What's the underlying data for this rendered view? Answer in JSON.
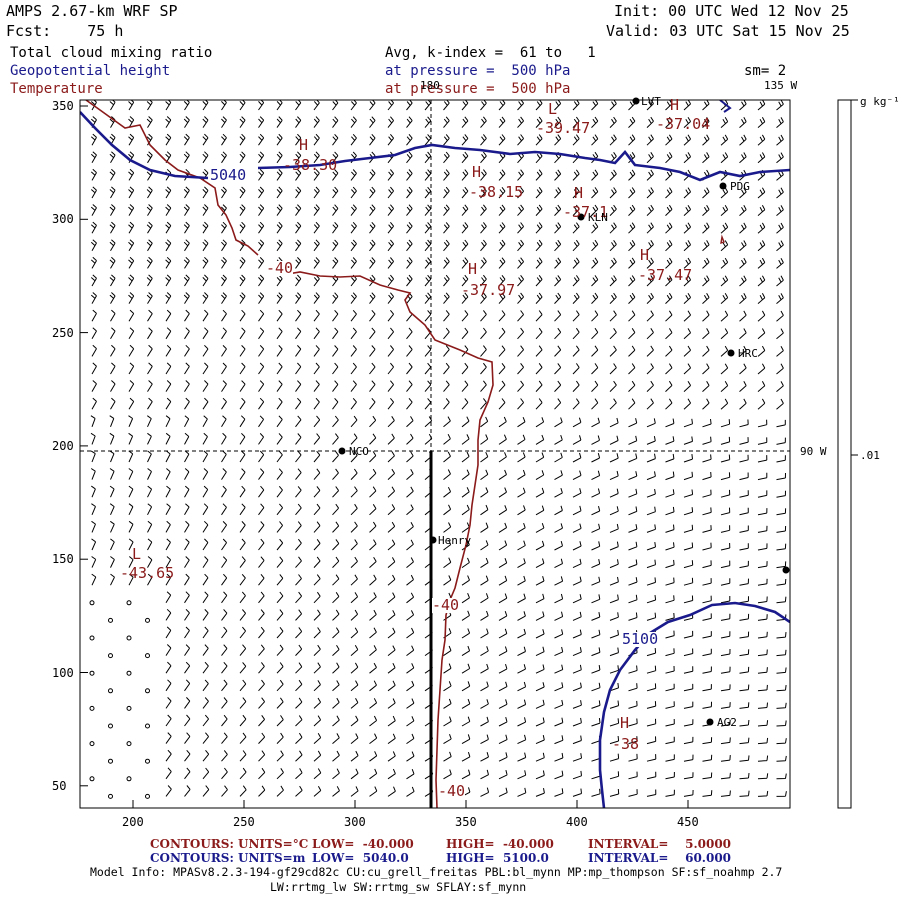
{
  "header": {
    "model": "AMPS 2.67-km WRF SP",
    "forecast": "Fcst:    75 h",
    "init": "Init: 00 UTC Wed 12 Nov 25",
    "valid": "Valid: 03 UTC Sat 15 Nov 25"
  },
  "fields": {
    "cloud": "Total cloud mixing ratio",
    "geopotential": "Geopotential height",
    "temperature": "Temperature",
    "avg": "Avg, k-index =  61 to   1",
    "pressure1": "at pressure =  500 hPa",
    "pressure2": "at pressure =  500 hPa",
    "sm": "sm= 2"
  },
  "map": {
    "x_ticks": [
      "200",
      "250",
      "300",
      "350",
      "400",
      "450"
    ],
    "y_ticks": [
      "350",
      "300",
      "250",
      "200",
      "150",
      "100",
      "50"
    ],
    "lon_180": "180",
    "lon_135": "135 W",
    "lon_90": "90 W",
    "colorbar_unit": "g kg⁻¹",
    "colorbar_value": ".01",
    "contour_5040": "5040",
    "contour_5100": "5100",
    "temp_labels": [
      "-40",
      "-40",
      "-40"
    ],
    "highs_lows": [
      {
        "sym": "H",
        "val": "-38.30"
      },
      {
        "sym": "L",
        "val": "-39.47"
      },
      {
        "sym": "H",
        "val": "-37.04"
      },
      {
        "sym": "H",
        "val": "-38.15"
      },
      {
        "sym": "H",
        "val": "-37.97"
      },
      {
        "sym": "H",
        "val": "-37.47"
      },
      {
        "sym": "L",
        "val": "-43.65"
      },
      {
        "sym": "H",
        "val": "-38"
      }
    ],
    "kln_h": "H",
    "kln_val": "-37.1",
    "stations": [
      "PDG",
      "KLN",
      "HRC",
      "NCO",
      "Henry",
      "AG2",
      "LVT"
    ]
  },
  "footer": {
    "row1": {
      "label": "CONTOURS:",
      "units": "UNITS=°C",
      "low": "LOW=  -40.000",
      "high": "HIGH=  -40.000",
      "interval": "INTERVAL=    5.0000"
    },
    "row2": {
      "label": "CONTOURS:",
      "units": "UNITS=m",
      "low": "LOW=  5040.0",
      "high": "HIGH=  5100.0",
      "interval": "INTERVAL=    60.000"
    },
    "model_info": "Model Info: MPASv8.2.3-194-gf29cd82c CU:cu_grell_freitas PBL:bl_mynn MP:mp_thompson SF:sf_noahmp 2.7",
    "model_info2": "LW:rrtmg_lw SW:rrtmg_sw SFLAY:sf_mynn"
  },
  "colors": {
    "temp": "#8b1a1a",
    "height": "#1a1a8c",
    "axis": "#000000"
  }
}
